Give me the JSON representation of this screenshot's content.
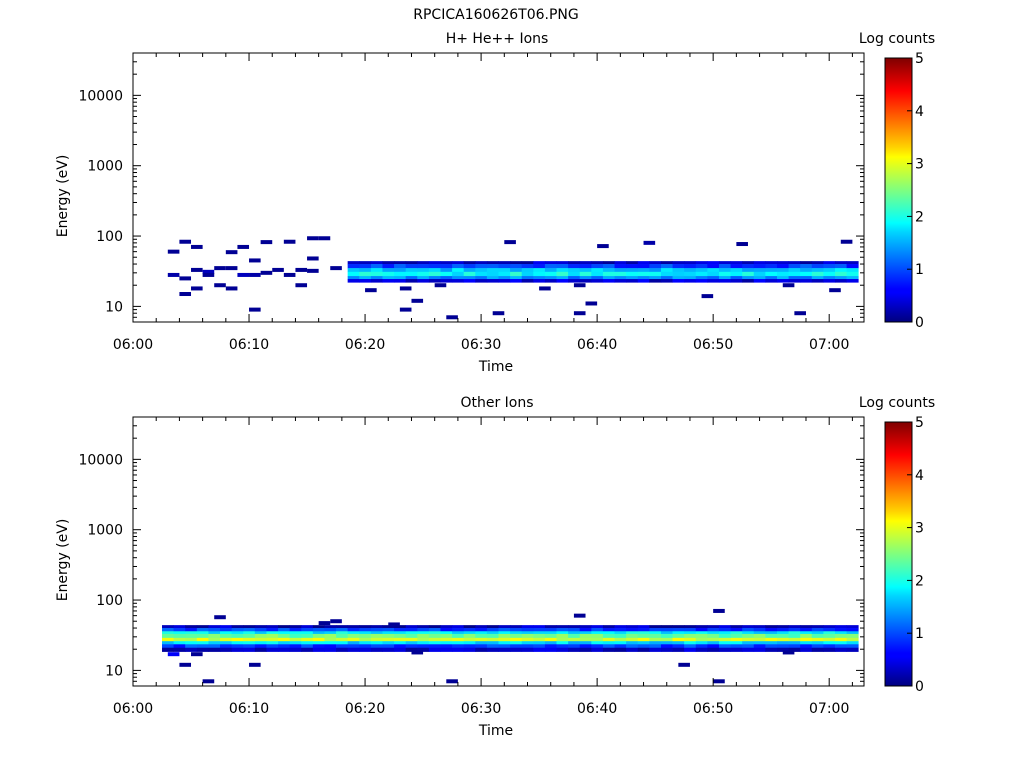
{
  "figure_title": "RPCICA160626T06.PNG",
  "chart_data": [
    {
      "type": "heatmap",
      "title": "H+ He++ Ions",
      "xlabel": "Time",
      "ylabel": "Energy (eV)",
      "y_scale": "log",
      "xlim": [
        "06:00",
        "07:03"
      ],
      "ylim": [
        6,
        40000
      ],
      "xticks": [
        "06:00",
        "06:10",
        "06:20",
        "06:30",
        "06:40",
        "06:50",
        "07:00"
      ],
      "yticks": [
        "10",
        "100",
        "1000",
        "10000"
      ],
      "colorbar_label": "Log counts",
      "colorbar_ticks": [
        "0",
        "1",
        "2",
        "3",
        "4",
        "5"
      ],
      "clim": [
        0,
        5
      ],
      "colormap": "jet",
      "grid": false,
      "band": {
        "start": "06:18.5",
        "end": "07:02.5",
        "levels": [
          {
            "energy_range": [
              40,
              44
            ],
            "count": 0.35
          },
          {
            "energy_range": [
              35,
              40
            ],
            "count": 0.9
          },
          {
            "energy_range": [
              31,
              35
            ],
            "count": 1.6
          },
          {
            "energy_range": [
              27,
              31
            ],
            "count": 1.9
          },
          {
            "energy_range": [
              24.5,
              27
            ],
            "count": 1.3
          },
          {
            "energy_range": [
              22,
              24.5
            ],
            "count": 0.4
          }
        ]
      },
      "sparse_counts": [
        {
          "t": "06:03",
          "e": 28,
          "c": 0.2
        },
        {
          "t": "06:03",
          "e": 60,
          "c": 0.1
        },
        {
          "t": "06:04",
          "e": 83,
          "c": 0.1
        },
        {
          "t": "06:04",
          "e": 25,
          "c": 0.1
        },
        {
          "t": "06:04",
          "e": 15,
          "c": 0.1
        },
        {
          "t": "06:05",
          "e": 70,
          "c": 0.1
        },
        {
          "t": "06:05",
          "e": 33,
          "c": 0.1
        },
        {
          "t": "06:05",
          "e": 18,
          "c": 0.1
        },
        {
          "t": "06:06",
          "e": 31,
          "c": 0.3
        },
        {
          "t": "06:06",
          "e": 28,
          "c": 0.1
        },
        {
          "t": "06:07",
          "e": 35,
          "c": 0.1
        },
        {
          "t": "06:07",
          "e": 20,
          "c": 0.1
        },
        {
          "t": "06:08",
          "e": 59,
          "c": 0.1
        },
        {
          "t": "06:08",
          "e": 35,
          "c": 0.1
        },
        {
          "t": "06:08",
          "e": 18,
          "c": 0.1
        },
        {
          "t": "06:09",
          "e": 70,
          "c": 0.1
        },
        {
          "t": "06:09",
          "e": 28,
          "c": 0.3
        },
        {
          "t": "06:10",
          "e": 45,
          "c": 0.1
        },
        {
          "t": "06:10",
          "e": 28,
          "c": 0.2
        },
        {
          "t": "06:10",
          "e": 9,
          "c": 0.1
        },
        {
          "t": "06:11",
          "e": 82,
          "c": 0.1
        },
        {
          "t": "06:11",
          "e": 30,
          "c": 0.1
        },
        {
          "t": "06:12",
          "e": 33,
          "c": 0.1
        },
        {
          "t": "06:13",
          "e": 83,
          "c": 0.1
        },
        {
          "t": "06:13",
          "e": 28,
          "c": 0.1
        },
        {
          "t": "06:14",
          "e": 33,
          "c": 0.1
        },
        {
          "t": "06:14",
          "e": 20,
          "c": 0.1
        },
        {
          "t": "06:15",
          "e": 93,
          "c": 0.1
        },
        {
          "t": "06:15",
          "e": 48,
          "c": 0.1
        },
        {
          "t": "06:15",
          "e": 32,
          "c": 0.1
        },
        {
          "t": "06:16",
          "e": 93,
          "c": 0.1
        },
        {
          "t": "06:17",
          "e": 35,
          "c": 0.1
        },
        {
          "t": "06:20",
          "e": 17,
          "c": 0.1
        },
        {
          "t": "06:23",
          "e": 18,
          "c": 0.1
        },
        {
          "t": "06:23",
          "e": 9,
          "c": 0.1
        },
        {
          "t": "06:24",
          "e": 12,
          "c": 0.1
        },
        {
          "t": "06:26",
          "e": 20,
          "c": 0.1
        },
        {
          "t": "06:27",
          "e": 7,
          "c": 0.1
        },
        {
          "t": "06:31",
          "e": 8,
          "c": 0.1
        },
        {
          "t": "06:32",
          "e": 82,
          "c": 0.1
        },
        {
          "t": "06:35",
          "e": 18,
          "c": 0.1
        },
        {
          "t": "06:38",
          "e": 20,
          "c": 0.1
        },
        {
          "t": "06:38",
          "e": 8,
          "c": 0.1
        },
        {
          "t": "06:39",
          "e": 11,
          "c": 0.1
        },
        {
          "t": "06:40",
          "e": 72,
          "c": 0.1
        },
        {
          "t": "06:44",
          "e": 80,
          "c": 0.2
        },
        {
          "t": "06:49",
          "e": 14,
          "c": 0.1
        },
        {
          "t": "06:52",
          "e": 77,
          "c": 0.1
        },
        {
          "t": "06:56",
          "e": 20,
          "c": 0.1
        },
        {
          "t": "06:57",
          "e": 8,
          "c": 0.1
        },
        {
          "t": "07:00",
          "e": 17,
          "c": 0.1
        },
        {
          "t": "07:01",
          "e": 83,
          "c": 0.1
        }
      ]
    },
    {
      "type": "heatmap",
      "title": "Other Ions",
      "xlabel": "Time",
      "ylabel": "Energy (eV)",
      "y_scale": "log",
      "xlim": [
        "06:00",
        "07:03"
      ],
      "ylim": [
        6,
        40000
      ],
      "xticks": [
        "06:00",
        "06:10",
        "06:20",
        "06:30",
        "06:40",
        "06:50",
        "07:00"
      ],
      "yticks": [
        "10",
        "100",
        "1000",
        "10000"
      ],
      "colorbar_label": "Log counts",
      "colorbar_ticks": [
        "0",
        "1",
        "2",
        "3",
        "4",
        "5"
      ],
      "clim": [
        0,
        5
      ],
      "colormap": "jet",
      "grid": false,
      "band": {
        "start": "06:02.5",
        "end": "07:02.5",
        "levels": [
          {
            "energy_range": [
              40,
              44
            ],
            "count": 0.3
          },
          {
            "energy_range": [
              36,
              40
            ],
            "count": 0.9
          },
          {
            "energy_range": [
              33,
              36
            ],
            "count": 1.8
          },
          {
            "energy_range": [
              29,
              33
            ],
            "count": 2.4
          },
          {
            "energy_range": [
              26,
              29
            ],
            "count": 2.9
          },
          {
            "energy_range": [
              23.5,
              26
            ],
            "count": 1.7
          },
          {
            "energy_range": [
              21,
              23.5
            ],
            "count": 0.9
          },
          {
            "energy_range": [
              18.5,
              21
            ],
            "count": 0.35
          }
        ]
      },
      "sparse_counts": [
        {
          "t": "06:03",
          "e": 17,
          "c": 0.6
        },
        {
          "t": "06:04",
          "e": 12,
          "c": 0.1
        },
        {
          "t": "06:05",
          "e": 17,
          "c": 0.1
        },
        {
          "t": "06:06",
          "e": 7,
          "c": 0.1
        },
        {
          "t": "06:07",
          "e": 57,
          "c": 0.1
        },
        {
          "t": "06:10",
          "e": 12,
          "c": 0.1
        },
        {
          "t": "06:16",
          "e": 47,
          "c": 0.1
        },
        {
          "t": "06:17",
          "e": 50,
          "c": 0.1
        },
        {
          "t": "06:22",
          "e": 45,
          "c": 0.1
        },
        {
          "t": "06:24",
          "e": 18,
          "c": 0.1
        },
        {
          "t": "06:27",
          "e": 7,
          "c": 0.1
        },
        {
          "t": "06:38",
          "e": 60,
          "c": 0.1
        },
        {
          "t": "06:47",
          "e": 12,
          "c": 0.1
        },
        {
          "t": "06:50",
          "e": 70,
          "c": 0.1
        },
        {
          "t": "06:50",
          "e": 7,
          "c": 0.1
        },
        {
          "t": "06:56",
          "e": 18,
          "c": 0.1
        }
      ]
    }
  ]
}
